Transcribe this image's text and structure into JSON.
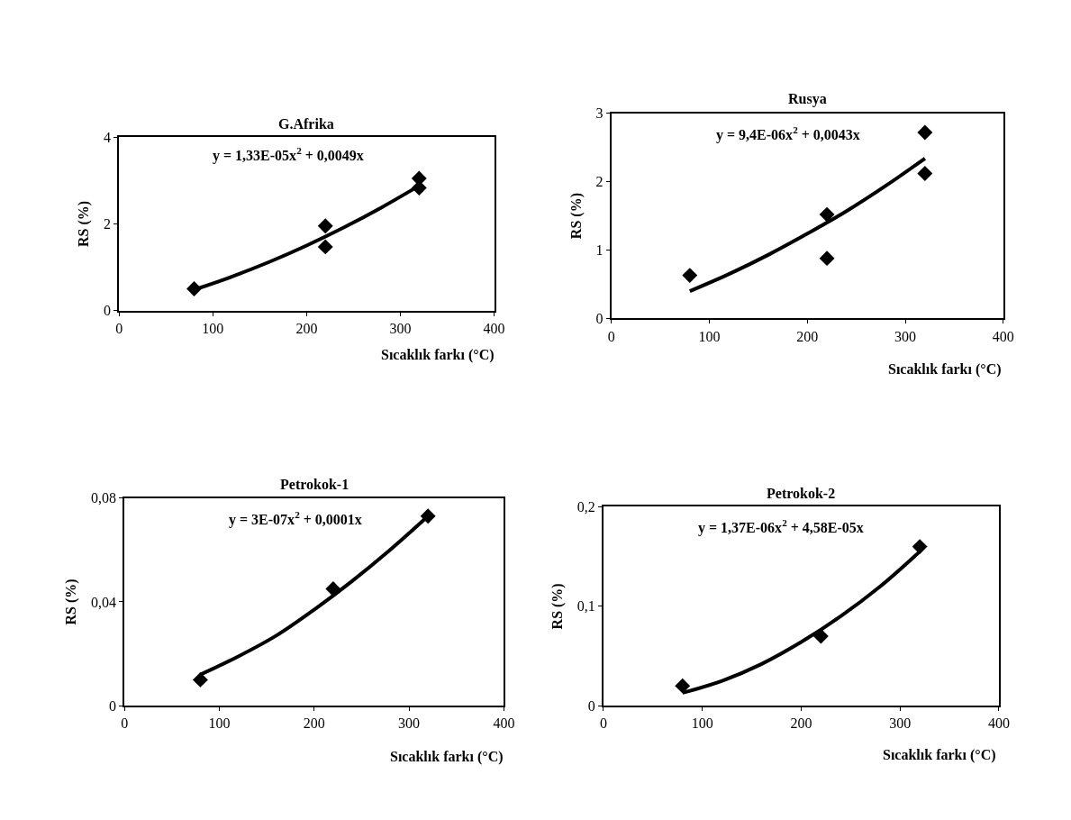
{
  "chart_data": [
    {
      "type": "scatter",
      "title": "G.Afrika",
      "xlabel": "Sıcaklık farkı (°C)",
      "ylabel": "RS (%)",
      "annotations": [
        "y = 1,33E-05x$^{2}$ + 0,0049x"
      ],
      "xlim": [
        0,
        400
      ],
      "xticks": [
        0,
        100,
        200,
        300,
        400
      ],
      "ylim": [
        0,
        4
      ],
      "yticks": [
        0,
        2,
        4
      ],
      "series": [
        {
          "color": "#000000",
          "marker": "diamond",
          "x": [
            80,
            220,
            220,
            320,
            320
          ],
          "values": [
            0.5,
            1.95,
            1.47,
            3.05,
            2.83
          ]
        },
        {
          "type": "line",
          "color": "#000000",
          "marker": "none",
          "x": [
            80,
            120,
            160,
            200,
            240,
            280,
            320
          ],
          "values": [
            0.48,
            0.78,
            1.12,
            1.5,
            1.92,
            2.38,
            2.88
          ]
        }
      ]
    },
    {
      "type": "scatter",
      "title": "Rusya",
      "xlabel": "Sıcaklık farkı (°C)",
      "ylabel": "RS (%)",
      "annotations": [
        "y = 9,4E-06x$^{2}$ + 0,0043x"
      ],
      "xlim": [
        0,
        400
      ],
      "xticks": [
        0,
        100,
        200,
        300,
        400
      ],
      "ylim": [
        0,
        3
      ],
      "yticks": [
        0,
        1,
        2,
        3
      ],
      "series": [
        {
          "color": "#000000",
          "marker": "diamond",
          "x": [
            80,
            220,
            220,
            320,
            320
          ],
          "values": [
            0.63,
            1.52,
            0.88,
            2.72,
            2.12
          ]
        },
        {
          "type": "line",
          "color": "#000000",
          "marker": "none",
          "x": [
            80,
            120,
            160,
            200,
            240,
            280,
            320
          ],
          "values": [
            0.4,
            0.65,
            0.93,
            1.24,
            1.57,
            1.94,
            2.34
          ]
        }
      ]
    },
    {
      "type": "scatter",
      "title": "Petrokok-1",
      "xlabel": "Sıcaklık farkı (°C)",
      "ylabel": "RS (%)",
      "annotations": [
        "y = 3E-07x$^{2}$ + 0,0001x"
      ],
      "xlim": [
        0,
        400
      ],
      "xticks": [
        0,
        100,
        200,
        300,
        400
      ],
      "ylim": [
        0,
        0.08
      ],
      "yticks": [
        0,
        {
          "value": 0.04,
          "label": "0,04"
        },
        {
          "value": 0.08,
          "label": "0,08"
        }
      ],
      "series": [
        {
          "color": "#000000",
          "marker": "diamond",
          "x": [
            80,
            220,
            320
          ],
          "values": [
            0.01,
            0.045,
            0.073
          ]
        },
        {
          "type": "line",
          "color": "#000000",
          "marker": "none",
          "x": [
            80,
            120,
            160,
            200,
            240,
            280,
            320
          ],
          "values": [
            0.012,
            0.019,
            0.027,
            0.037,
            0.048,
            0.06,
            0.073
          ]
        }
      ]
    },
    {
      "type": "scatter",
      "title": "Petrokok-2",
      "xlabel": "Sıcaklık farkı (°C)",
      "ylabel": "RS (%)",
      "annotations": [
        "y = 1,37E-06x$^{2}$ + 4,58E-05x"
      ],
      "xlim": [
        0,
        400
      ],
      "xticks": [
        0,
        100,
        200,
        300,
        400
      ],
      "ylim": [
        0,
        0.2
      ],
      "yticks": [
        0,
        {
          "value": 0.1,
          "label": "0,1"
        },
        {
          "value": 0.2,
          "label": "0,2"
        }
      ],
      "series": [
        {
          "color": "#000000",
          "marker": "diamond",
          "x": [
            80,
            220,
            320
          ],
          "values": [
            0.02,
            0.07,
            0.16
          ]
        },
        {
          "type": "line",
          "color": "#000000",
          "marker": "none",
          "x": [
            80,
            120,
            160,
            200,
            240,
            280,
            320
          ],
          "values": [
            0.013,
            0.025,
            0.042,
            0.064,
            0.09,
            0.12,
            0.155
          ]
        }
      ]
    }
  ]
}
